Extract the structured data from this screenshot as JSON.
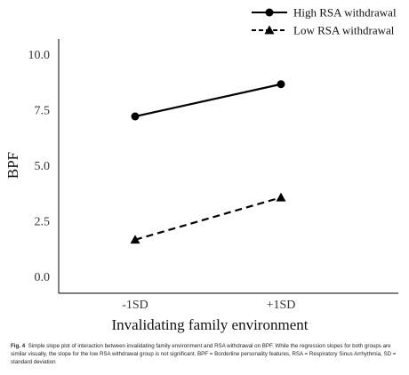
{
  "chart_data": {
    "type": "line",
    "categories": [
      "-1SD",
      "+1SD"
    ],
    "series": [
      {
        "name": "High RSA withdrawal",
        "values": [
          7.2,
          8.65
        ],
        "marker": "circle",
        "dash": "solid",
        "color": "#000000"
      },
      {
        "name": "Low RSA withdrawal",
        "values": [
          1.65,
          3.55
        ],
        "marker": "triangle",
        "dash": "dashed",
        "color": "#000000"
      }
    ],
    "ylim": [
      0,
      10
    ],
    "yticks": [
      "0.0",
      "2.5",
      "5.0",
      "7.5",
      "10.0"
    ],
    "xlabel": "Invalidating family environment",
    "ylabel": "BPF",
    "legend": "top-right",
    "grid": false
  },
  "caption": {
    "label": "Fig. 4",
    "text": "Simple slope plot of interaction between invalidating family environment and RSA withdrawal on BPF. While the regression slopes for both groups are similar visually, the slope for the low RSA withdrawal group is not significant. BPF = Borderline personality features, RSA = Respiratory Sinus Arrhythmia, SD = standard deviation"
  }
}
